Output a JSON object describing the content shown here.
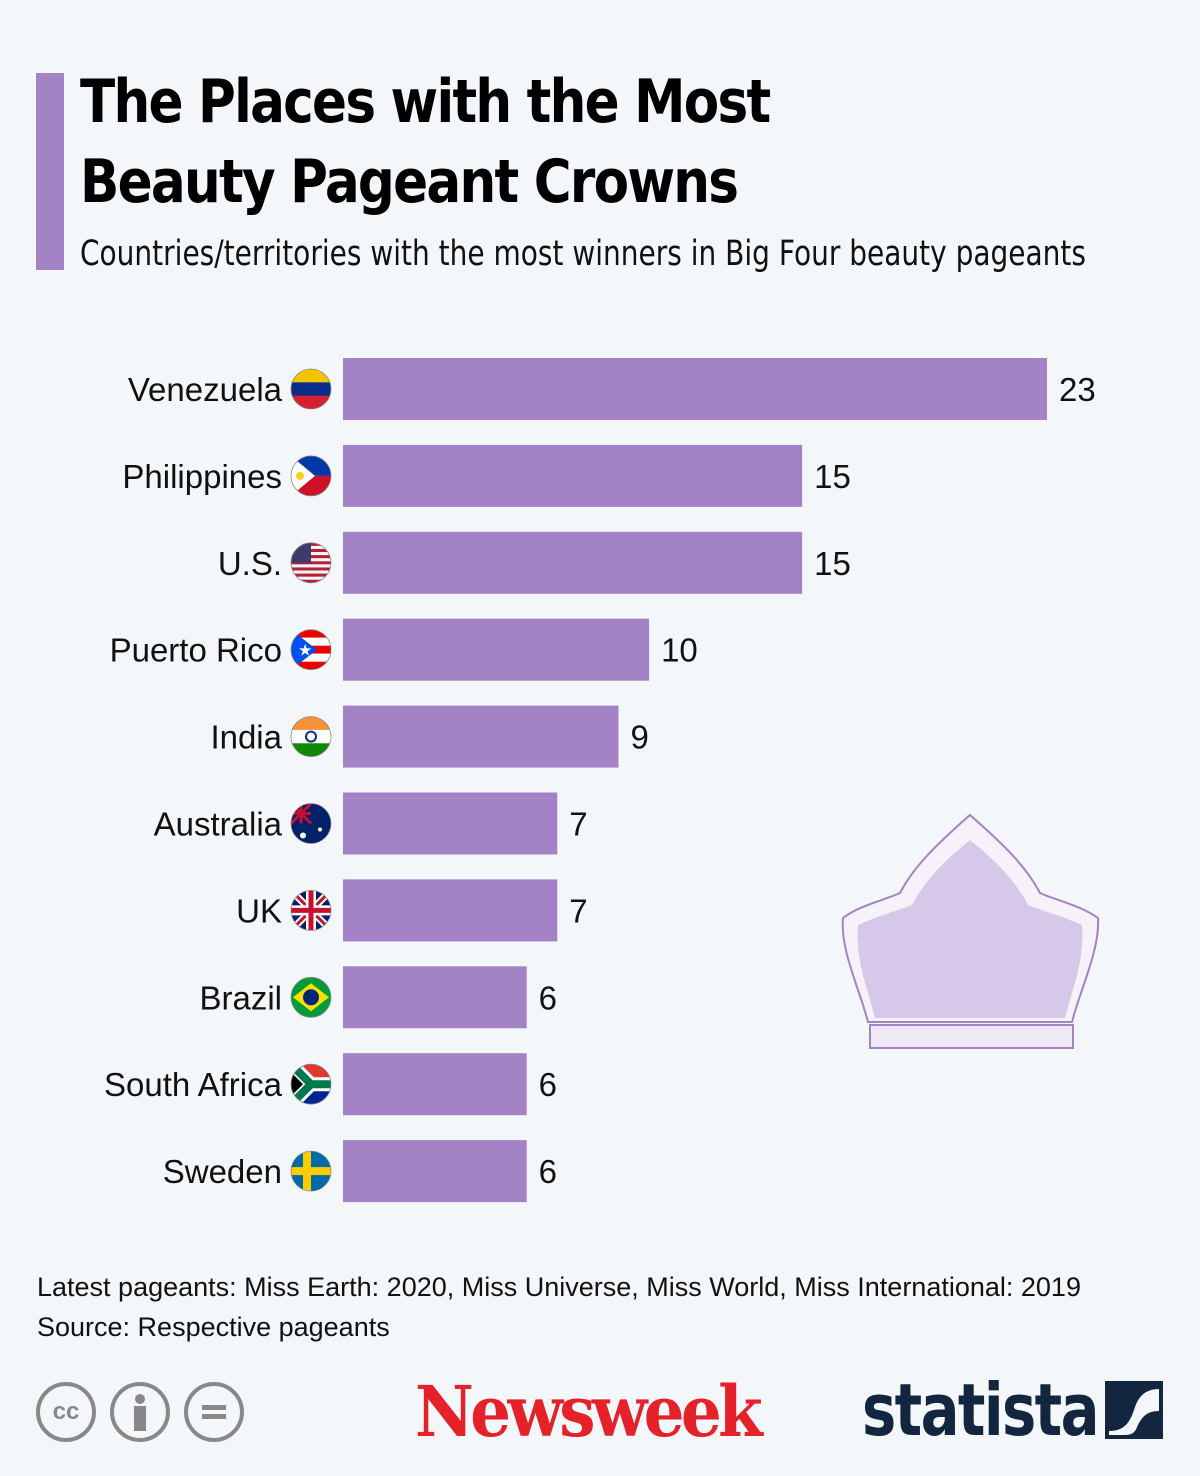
{
  "header": {
    "title_line1": "The Places with the Most",
    "title_line2": "Beauty Pageant Crowns",
    "subtitle": "Countries/territories with the most winners in Big Four beauty pageants"
  },
  "chart_data": {
    "type": "bar",
    "orientation": "horizontal",
    "categories": [
      "Venezuela",
      "Philippines",
      "U.S.",
      "Puerto Rico",
      "India",
      "Australia",
      "UK",
      "Brazil",
      "South Africa",
      "Sweden"
    ],
    "values": [
      23,
      15,
      15,
      10,
      9,
      7,
      7,
      6,
      6,
      6
    ],
    "flag_icons": [
      "venezuela-flag-icon",
      "philippines-flag-icon",
      "us-flag-icon",
      "puerto-rico-flag-icon",
      "india-flag-icon",
      "australia-flag-icon",
      "uk-flag-icon",
      "brazil-flag-icon",
      "south-africa-flag-icon",
      "sweden-flag-icon"
    ],
    "xlim": [
      0,
      23
    ],
    "bar_color": "#a482c6",
    "grid": false
  },
  "notes": {
    "latest": "Latest pageants: Miss Earth: 2020, Miss Universe, Miss World, Miss International: 2019",
    "source": "Source: Respective pageants"
  },
  "footer": {
    "cc_label": "cc",
    "brand1": "Newsweek",
    "brand2": "statista"
  },
  "colors": {
    "accent": "#a482c6",
    "newsweek": "#e5212a",
    "statista": "#13263f"
  }
}
